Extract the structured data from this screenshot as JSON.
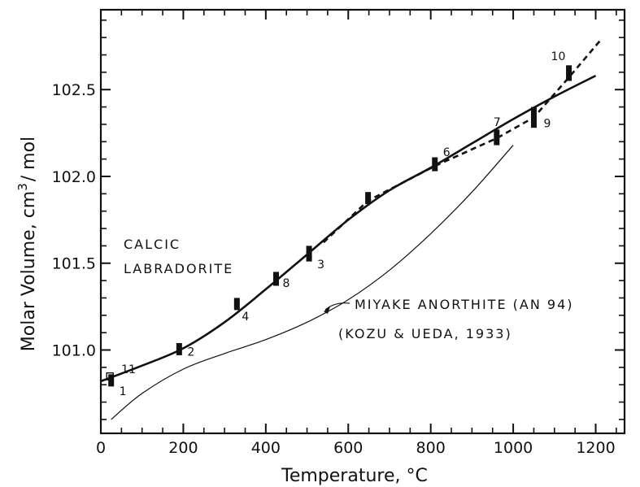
{
  "chart_data": {
    "type": "scatter",
    "title": "",
    "xlabel": "Temperature, °C",
    "ylabel_text": "Molar Volume, cm",
    "ylabel_sup": "3",
    "ylabel_suffix": "/ mol",
    "xlim": [
      0,
      1270
    ],
    "ylim": [
      100.52,
      102.96
    ],
    "x_ticks": [
      0,
      200,
      400,
      600,
      800,
      1000,
      1200
    ],
    "y_ticks": [
      101.0,
      101.5,
      102.0,
      102.5
    ],
    "y_tick_labels": [
      "101.0",
      "101.5",
      "102.0",
      "102.5"
    ],
    "grid": false,
    "annotations": {
      "calcic_line1": "CALCIC",
      "calcic_line2": "LABRADORITE",
      "miyake_line1": "MIYAKE ANORTHITE (AN 94)",
      "miyake_line2": "(KOZU & UEDA, 1933)"
    },
    "measurements": [
      {
        "label": "1",
        "x": 25,
        "y_low": 100.79,
        "y_high": 100.86
      },
      {
        "label": "11",
        "x": 22,
        "y_low": 100.8,
        "y_high": 100.84
      },
      {
        "label": "2",
        "x": 190,
        "y_low": 100.97,
        "y_high": 101.04
      },
      {
        "label": "3",
        "x": 505,
        "y_low": 101.51,
        "y_high": 101.6
      },
      {
        "label": "4",
        "x": 330,
        "y_low": 101.23,
        "y_high": 101.3
      },
      {
        "label": "8",
        "x": 425,
        "y_low": 101.37,
        "y_high": 101.45
      },
      {
        "label": "6",
        "x": 810,
        "y_low": 102.03,
        "y_high": 102.11
      },
      {
        "label": "7",
        "x": 960,
        "y_low": 102.18,
        "y_high": 102.27
      },
      {
        "label": "9",
        "x": 1050,
        "y_low": 102.28,
        "y_high": 102.4
      },
      {
        "label": "10",
        "x": 1135,
        "y_low": 102.55,
        "y_high": 102.64
      },
      {
        "label": "",
        "x": 648,
        "y_low": 101.84,
        "y_high": 101.91
      }
    ],
    "series": [
      {
        "style": "solid-thick",
        "x": [
          0,
          100,
          200,
          300,
          400,
          500,
          600,
          700,
          800,
          900,
          1000,
          1100,
          1200
        ],
        "y": [
          100.82,
          100.91,
          101.01,
          101.16,
          101.35,
          101.55,
          101.75,
          101.92,
          102.05,
          102.19,
          102.33,
          102.46,
          102.58
        ]
      },
      {
        "style": "dashed",
        "x": [
          540,
          648,
          810,
          960,
          1050,
          1135,
          1210
        ],
        "y": [
          101.62,
          101.86,
          102.06,
          102.22,
          102.34,
          102.57,
          102.78
        ]
      },
      {
        "style": "solid-thin",
        "x": [
          25,
          100,
          200,
          300,
          400,
          500,
          600,
          700,
          800,
          900,
          1000
        ],
        "y": [
          100.6,
          100.75,
          100.89,
          100.98,
          101.06,
          101.16,
          101.29,
          101.46,
          101.67,
          101.91,
          102.18
        ]
      }
    ]
  }
}
